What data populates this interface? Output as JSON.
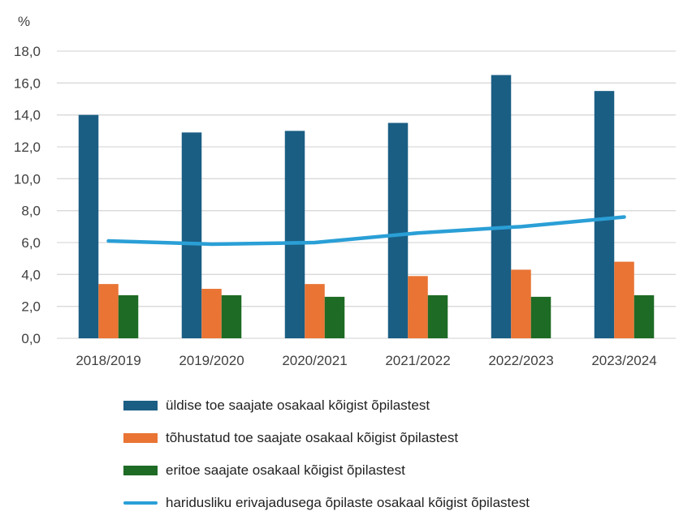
{
  "chart_data": {
    "type": "bar",
    "ylabel": "%",
    "ylim": [
      0,
      18
    ],
    "yticks": [
      "0,0",
      "2,0",
      "4,0",
      "6,0",
      "8,0",
      "10,0",
      "12,0",
      "14,0",
      "16,0",
      "18,0"
    ],
    "grid": true,
    "legend_position": "bottom",
    "categories": [
      "2018/2019",
      "2019/2020",
      "2020/2021",
      "2021/2022",
      "2022/2023",
      "2023/2024"
    ],
    "series": [
      {
        "name": "üldise toe saajate osakaal kõigist õpilastest",
        "type": "bar",
        "color": "#1a5e84",
        "values": [
          14.0,
          12.9,
          13.0,
          13.5,
          16.5,
          15.5
        ]
      },
      {
        "name": "tõhustatud toe saajate osakaal kõigist õpilastest",
        "type": "bar",
        "color": "#e97434",
        "values": [
          3.4,
          3.1,
          3.4,
          3.9,
          4.3,
          4.8
        ]
      },
      {
        "name": "eritoe saajate osakaal kõigist õpilastest",
        "type": "bar",
        "color": "#1e6b25",
        "values": [
          2.7,
          2.7,
          2.6,
          2.7,
          2.6,
          2.7
        ]
      },
      {
        "name": "haridusliku erivajadusega õpilaste osakaal kõigist õpilastest",
        "type": "line",
        "color": "#2a9fd6",
        "values": [
          6.1,
          5.9,
          6.0,
          6.6,
          7.0,
          7.6
        ]
      }
    ]
  }
}
